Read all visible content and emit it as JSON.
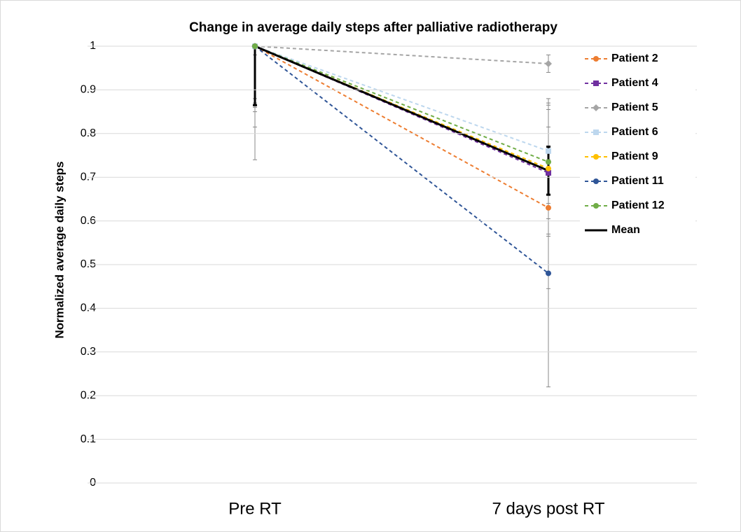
{
  "chart_data": {
    "type": "line",
    "title": "Change in average daily steps after palliative radiotherapy",
    "y_label": "Normalized  average daily steps",
    "categories": [
      "Pre RT",
      "7 days post RT"
    ],
    "ylim": [
      0,
      1
    ],
    "yticks": [
      0,
      0.1,
      0.2,
      0.3,
      0.4,
      0.5,
      0.6,
      0.7,
      0.8,
      0.9,
      1
    ],
    "grid": true,
    "legend": "right",
    "series": [
      {
        "name": "Patient 2",
        "color": "#ED7D31",
        "marker": "circle",
        "line_style": "dashed",
        "values": [
          1,
          0.63
        ],
        "errors": [
          0.185,
          0.185
        ]
      },
      {
        "name": "Patient 4",
        "color": "#7030A0",
        "marker": "square",
        "line_style": "dashed",
        "values": [
          1,
          0.71
        ],
        "errors": [
          0.14,
          0.145
        ]
      },
      {
        "name": "Patient 5",
        "color": "#A5A5A5",
        "marker": "diamond",
        "line_style": "dashed",
        "values": [
          1,
          0.96
        ],
        "errors": [
          0.02,
          0.02
        ]
      },
      {
        "name": "Patient 6",
        "color": "#BDD7EE",
        "marker": "square",
        "line_style": "dashed",
        "values": [
          1,
          0.76
        ],
        "errors": [
          0.12,
          0.12
        ]
      },
      {
        "name": "Patient 9",
        "color": "#FFC000",
        "marker": "circle",
        "line_style": "dashed",
        "values": [
          1,
          0.72
        ],
        "errors": [
          0.15,
          0.15
        ]
      },
      {
        "name": "Patient 11",
        "color": "#2F5597",
        "marker": "circle",
        "line_style": "dashed",
        "values": [
          1,
          0.48
        ],
        "errors": [
          0.26,
          0.26
        ]
      },
      {
        "name": "Patient 12",
        "color": "#70AD47",
        "marker": "circle",
        "line_style": "dashed",
        "values": [
          1,
          0.735
        ],
        "errors": [
          0.13,
          0.13
        ]
      },
      {
        "name": "Mean",
        "color": "#000000",
        "marker": "none",
        "line_style": "solid",
        "values": [
          1,
          0.715
        ],
        "errors": [
          0.135,
          0.055
        ]
      }
    ]
  }
}
